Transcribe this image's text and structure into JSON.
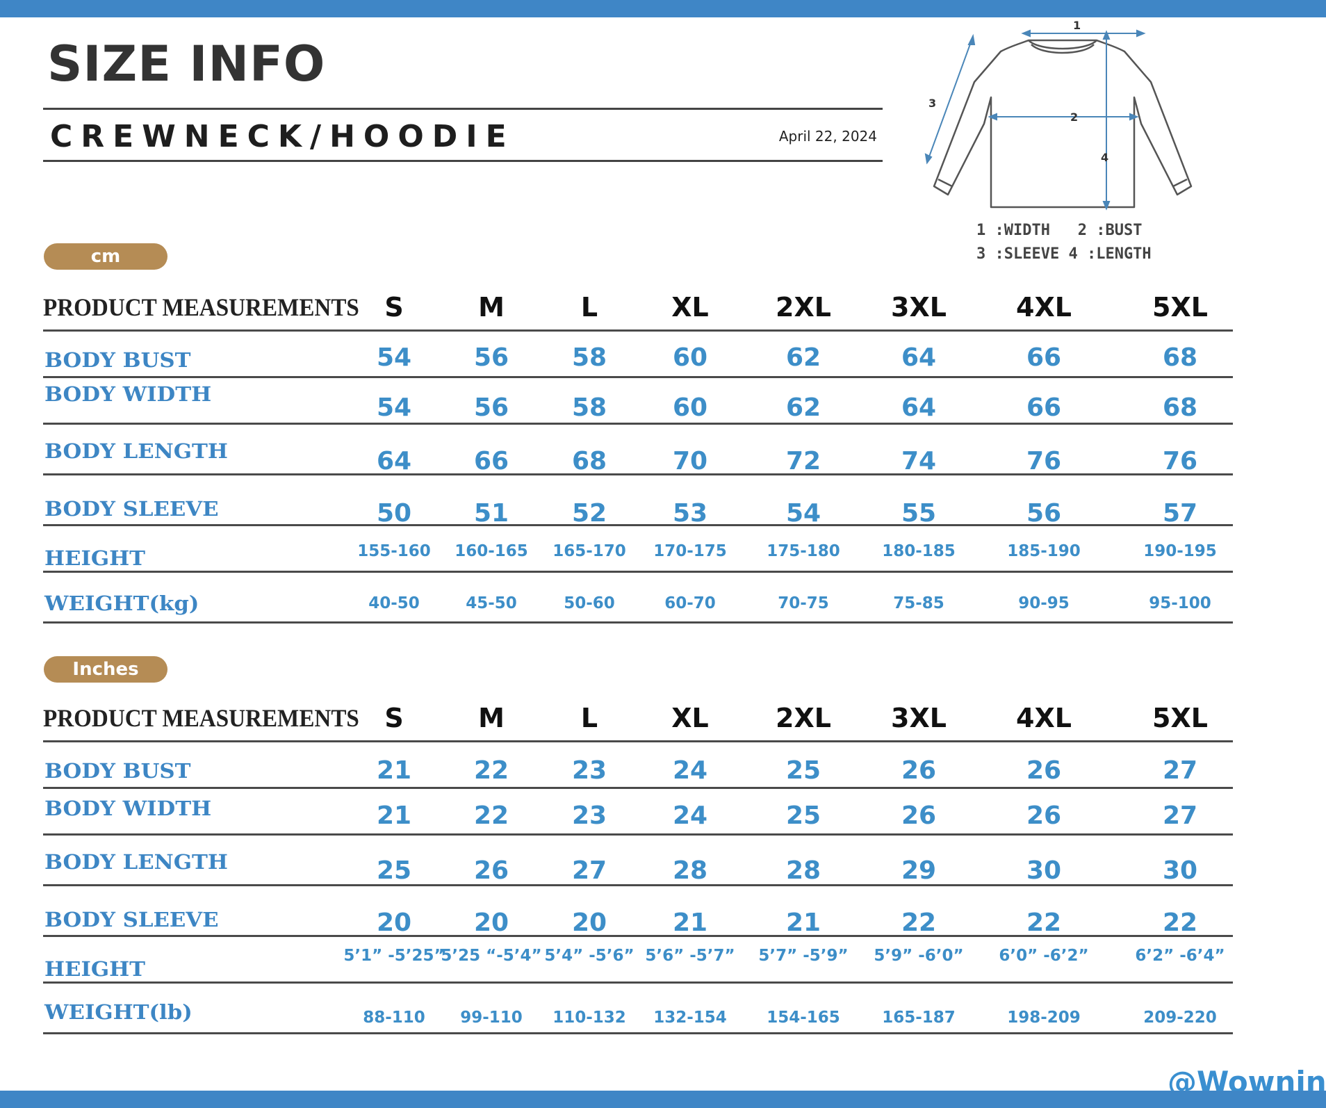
{
  "header": {
    "title": "SIZE INFO",
    "subtitle": "CREWNECK/HOODIE",
    "date": "April 22, 2024"
  },
  "diagram": {
    "markers": [
      "1",
      "2",
      "3",
      "4"
    ],
    "legend": [
      "1 :WIDTH",
      "2 :BUST",
      "3 :SLEEVE",
      "4 :LENGTH"
    ]
  },
  "sizes": [
    "S",
    "M",
    "L",
    "XL",
    "2XL",
    "3XL",
    "4XL",
    "5XL"
  ],
  "cm_table": {
    "unit": "cm",
    "header_label": "PRODUCT MEASUREMENTS",
    "rows": [
      {
        "label": "BODY BUST",
        "values": [
          "54",
          "56",
          "58",
          "60",
          "62",
          "64",
          "66",
          "68"
        ]
      },
      {
        "label": "BODY WIDTH",
        "values": [
          "54",
          "56",
          "58",
          "60",
          "62",
          "64",
          "66",
          "68"
        ]
      },
      {
        "label": "BODY LENGTH",
        "values": [
          "64",
          "66",
          "68",
          "70",
          "72",
          "74",
          "76",
          "76"
        ]
      },
      {
        "label": "BODY SLEEVE",
        "values": [
          "50",
          "51",
          "52",
          "53",
          "54",
          "55",
          "56",
          "57"
        ]
      },
      {
        "label": "HEIGHT",
        "values": [
          "155-160",
          "160-165",
          "165-170",
          "170-175",
          "175-180",
          "180-185",
          "185-190",
          "190-195"
        ]
      },
      {
        "label": "WEIGHT(kg)",
        "values": [
          "40-50",
          "45-50",
          "50-60",
          "60-70",
          "70-75",
          "75-85",
          "90-95",
          "95-100"
        ]
      }
    ]
  },
  "inch_table": {
    "unit": "Inches",
    "header_label": "PRODUCT MEASUREMENTS",
    "rows": [
      {
        "label": "BODY BUST",
        "values": [
          "21",
          "22",
          "23",
          "24",
          "25",
          "26",
          "26",
          "27"
        ]
      },
      {
        "label": "BODY WIDTH",
        "values": [
          "21",
          "22",
          "23",
          "24",
          "25",
          "26",
          "26",
          "27"
        ]
      },
      {
        "label": "BODY LENGTH",
        "values": [
          "25",
          "26",
          "27",
          "28",
          "28",
          "29",
          "30",
          "30"
        ]
      },
      {
        "label": "BODY SLEEVE",
        "values": [
          "20",
          "20",
          "20",
          "21",
          "21",
          "22",
          "22",
          "22"
        ]
      },
      {
        "label": "HEIGHT",
        "values": [
          "5’1” -5’25”",
          "5’25 “-5’4”",
          "5’4” -5’6”",
          "5’6” -5’7”",
          "5’7” -5’9”",
          "5’9” -6’0”",
          "6’0” -6’2”",
          "6’2” -6’4”"
        ]
      },
      {
        "label": "WEIGHT(lb)",
        "values": [
          "88-110",
          "99-110",
          "110-132",
          "132-154",
          "154-165",
          "165-187",
          "198-209",
          "209-220"
        ]
      }
    ]
  },
  "watermark": "@Wownine",
  "colors": {
    "accent_blue": "#3f86c6",
    "value_blue": "#3d8ec8",
    "pill_tan": "#b58c55",
    "header_text": "#222222"
  }
}
